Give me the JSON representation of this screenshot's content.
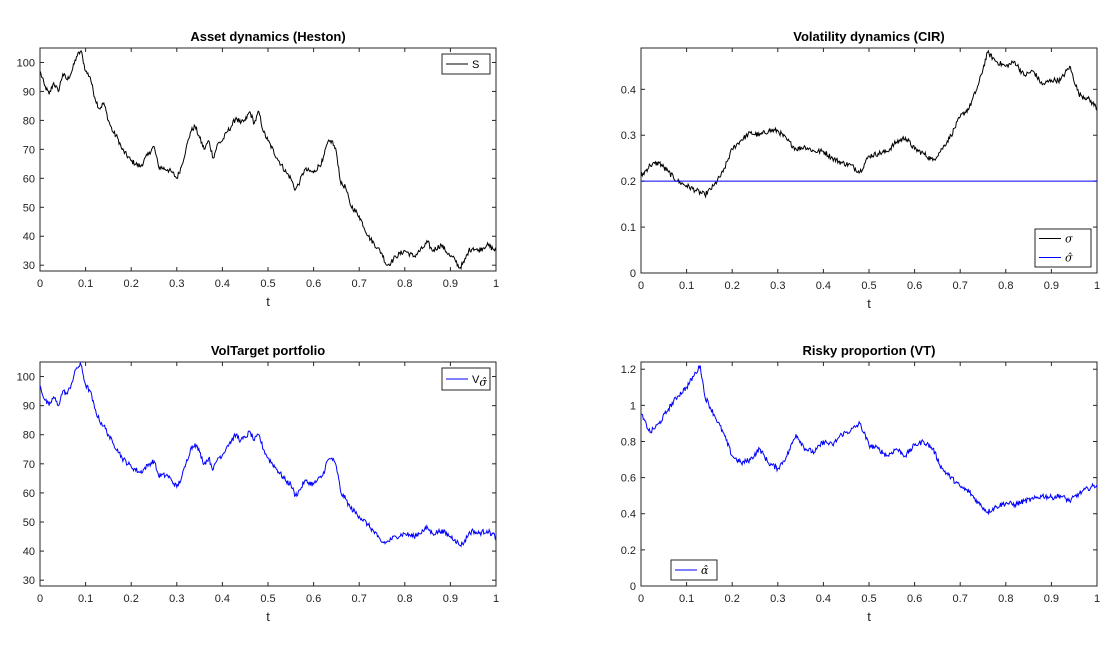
{
  "chart_data": [
    {
      "type": "line",
      "title": "Asset dynamics (Heston)",
      "xlabel": "t",
      "ylabel": "",
      "xlim": [
        0,
        1
      ],
      "ylim": [
        28,
        105
      ],
      "xticks": [
        0,
        0.1,
        0.2,
        0.3,
        0.4,
        0.5,
        0.6,
        0.7,
        0.8,
        0.9,
        1
      ],
      "yticks": [
        30,
        40,
        50,
        60,
        70,
        80,
        90,
        100
      ],
      "legend_position": "top-right",
      "series": [
        {
          "name": "S",
          "color": "#000000",
          "x": [
            0,
            0.01,
            0.02,
            0.03,
            0.04,
            0.05,
            0.06,
            0.07,
            0.08,
            0.09,
            0.1,
            0.11,
            0.12,
            0.13,
            0.14,
            0.15,
            0.16,
            0.17,
            0.18,
            0.2,
            0.22,
            0.24,
            0.25,
            0.26,
            0.28,
            0.29,
            0.3,
            0.31,
            0.32,
            0.33,
            0.34,
            0.35,
            0.36,
            0.37,
            0.38,
            0.39,
            0.4,
            0.41,
            0.42,
            0.43,
            0.44,
            0.45,
            0.46,
            0.47,
            0.48,
            0.49,
            0.5,
            0.52,
            0.54,
            0.55,
            0.56,
            0.57,
            0.58,
            0.6,
            0.62,
            0.63,
            0.64,
            0.65,
            0.66,
            0.67,
            0.68,
            0.7,
            0.72,
            0.74,
            0.75,
            0.76,
            0.77,
            0.78,
            0.8,
            0.82,
            0.84,
            0.85,
            0.86,
            0.88,
            0.9,
            0.91,
            0.92,
            0.93,
            0.94,
            0.95,
            0.96,
            0.98,
            1
          ],
          "values": [
            97,
            92,
            89,
            93,
            90,
            96,
            94,
            97,
            102,
            104,
            97,
            95,
            88,
            84,
            86,
            80,
            76,
            74,
            70,
            66,
            64,
            69,
            71,
            64,
            63,
            62,
            60,
            64,
            70,
            76,
            78,
            74,
            70,
            73,
            67,
            72,
            73,
            76,
            78,
            81,
            79,
            80,
            83,
            79,
            83,
            76,
            73,
            67,
            62,
            60,
            56,
            59,
            63,
            62,
            66,
            72,
            73,
            69,
            58,
            57,
            51,
            47,
            40,
            36,
            34,
            30,
            31,
            33,
            35,
            33,
            36,
            38,
            35,
            37,
            33,
            32,
            29,
            31,
            35,
            36,
            35,
            37,
            35
          ]
        }
      ]
    },
    {
      "type": "line",
      "title": "Volatility dynamics (CIR)",
      "xlabel": "t",
      "ylabel": "",
      "xlim": [
        0,
        1
      ],
      "ylim": [
        0,
        0.49
      ],
      "xticks": [
        0,
        0.1,
        0.2,
        0.3,
        0.4,
        0.5,
        0.6,
        0.7,
        0.8,
        0.9,
        1
      ],
      "yticks": [
        0,
        0.1,
        0.2,
        0.3,
        0.4
      ],
      "legend_position": "bottom-right",
      "series": [
        {
          "name": "σ",
          "color": "#000000",
          "x": [
            0,
            0.02,
            0.04,
            0.06,
            0.08,
            0.1,
            0.12,
            0.14,
            0.16,
            0.18,
            0.2,
            0.22,
            0.24,
            0.26,
            0.28,
            0.3,
            0.32,
            0.34,
            0.36,
            0.38,
            0.4,
            0.42,
            0.44,
            0.46,
            0.48,
            0.5,
            0.52,
            0.54,
            0.56,
            0.58,
            0.6,
            0.62,
            0.64,
            0.66,
            0.68,
            0.7,
            0.72,
            0.74,
            0.76,
            0.78,
            0.8,
            0.82,
            0.84,
            0.86,
            0.88,
            0.9,
            0.92,
            0.94,
            0.96,
            0.98,
            1
          ],
          "values": [
            0.21,
            0.235,
            0.24,
            0.22,
            0.2,
            0.19,
            0.18,
            0.17,
            0.19,
            0.22,
            0.27,
            0.29,
            0.305,
            0.3,
            0.31,
            0.31,
            0.29,
            0.27,
            0.275,
            0.265,
            0.265,
            0.25,
            0.24,
            0.235,
            0.22,
            0.255,
            0.26,
            0.265,
            0.285,
            0.295,
            0.27,
            0.26,
            0.245,
            0.27,
            0.3,
            0.34,
            0.36,
            0.41,
            0.48,
            0.46,
            0.45,
            0.46,
            0.43,
            0.44,
            0.41,
            0.42,
            0.42,
            0.45,
            0.39,
            0.38,
            0.36
          ]
        },
        {
          "name": "σ̂",
          "color": "#0000ff",
          "x": [
            0,
            1
          ],
          "values": [
            0.2,
            0.2
          ]
        }
      ]
    },
    {
      "type": "line",
      "title": "VolTarget portfolio",
      "xlabel": "t",
      "ylabel": "",
      "xlim": [
        0,
        1
      ],
      "ylim": [
        28,
        105
      ],
      "xticks": [
        0,
        0.1,
        0.2,
        0.3,
        0.4,
        0.5,
        0.6,
        0.7,
        0.8,
        0.9,
        1
      ],
      "yticks": [
        30,
        40,
        50,
        60,
        70,
        80,
        90,
        100
      ],
      "legend_position": "top-right",
      "series": [
        {
          "name": "V",
          "name_subscript": "σ̂",
          "color": "#0000ff",
          "x": [
            0,
            0.01,
            0.02,
            0.03,
            0.04,
            0.05,
            0.06,
            0.07,
            0.08,
            0.09,
            0.1,
            0.11,
            0.12,
            0.13,
            0.14,
            0.15,
            0.16,
            0.17,
            0.18,
            0.2,
            0.22,
            0.24,
            0.25,
            0.26,
            0.28,
            0.29,
            0.3,
            0.31,
            0.32,
            0.33,
            0.34,
            0.35,
            0.36,
            0.37,
            0.38,
            0.39,
            0.4,
            0.41,
            0.42,
            0.43,
            0.44,
            0.45,
            0.46,
            0.47,
            0.48,
            0.49,
            0.5,
            0.52,
            0.54,
            0.55,
            0.56,
            0.57,
            0.58,
            0.6,
            0.62,
            0.63,
            0.64,
            0.65,
            0.66,
            0.67,
            0.68,
            0.7,
            0.72,
            0.74,
            0.75,
            0.76,
            0.77,
            0.78,
            0.8,
            0.82,
            0.84,
            0.85,
            0.86,
            0.88,
            0.9,
            0.91,
            0.92,
            0.93,
            0.94,
            0.95,
            0.96,
            0.98,
            1
          ],
          "values": [
            97,
            92,
            90,
            93,
            90,
            95,
            94,
            98,
            103,
            104,
            97,
            95,
            89,
            85,
            83,
            80,
            77,
            75,
            72,
            69,
            67,
            70,
            71,
            66,
            66,
            64,
            62,
            65,
            70,
            75,
            77,
            74,
            70,
            72,
            68,
            72,
            73,
            76,
            78,
            80,
            78,
            79,
            81,
            78,
            80,
            75,
            72,
            68,
            64,
            63,
            59,
            61,
            64,
            63,
            66,
            71,
            72,
            69,
            60,
            58,
            55,
            52,
            49,
            45,
            43,
            43,
            44,
            45,
            46,
            45,
            47,
            48,
            46,
            47,
            45,
            44,
            42,
            43,
            46,
            47,
            46,
            47,
            45
          ]
        }
      ]
    },
    {
      "type": "line",
      "title": "Risky proportion (VT)",
      "xlabel": "t",
      "ylabel": "",
      "xlim": [
        0,
        1
      ],
      "ylim": [
        0,
        1.24
      ],
      "xticks": [
        0,
        0.1,
        0.2,
        0.3,
        0.4,
        0.5,
        0.6,
        0.7,
        0.8,
        0.9,
        1
      ],
      "yticks": [
        0,
        0.2,
        0.4,
        0.6,
        0.8,
        1,
        1.2
      ],
      "legend_position": "bottom-left",
      "series": [
        {
          "name": "α̂",
          "color": "#0000ff",
          "x": [
            0,
            0.02,
            0.04,
            0.06,
            0.08,
            0.1,
            0.12,
            0.13,
            0.14,
            0.16,
            0.18,
            0.2,
            0.22,
            0.24,
            0.26,
            0.28,
            0.3,
            0.32,
            0.34,
            0.36,
            0.38,
            0.4,
            0.42,
            0.44,
            0.46,
            0.48,
            0.5,
            0.52,
            0.54,
            0.56,
            0.58,
            0.6,
            0.62,
            0.64,
            0.66,
            0.68,
            0.7,
            0.72,
            0.74,
            0.76,
            0.78,
            0.8,
            0.82,
            0.84,
            0.86,
            0.88,
            0.9,
            0.92,
            0.94,
            0.96,
            0.98,
            1
          ],
          "values": [
            0.95,
            0.85,
            0.9,
            0.98,
            1.05,
            1.1,
            1.18,
            1.22,
            1.05,
            0.95,
            0.85,
            0.72,
            0.68,
            0.7,
            0.76,
            0.68,
            0.65,
            0.72,
            0.84,
            0.76,
            0.74,
            0.8,
            0.78,
            0.84,
            0.86,
            0.9,
            0.78,
            0.76,
            0.72,
            0.76,
            0.72,
            0.78,
            0.8,
            0.76,
            0.65,
            0.6,
            0.55,
            0.52,
            0.46,
            0.41,
            0.44,
            0.46,
            0.45,
            0.47,
            0.48,
            0.5,
            0.49,
            0.5,
            0.47,
            0.51,
            0.54,
            0.56
          ]
        }
      ]
    }
  ]
}
